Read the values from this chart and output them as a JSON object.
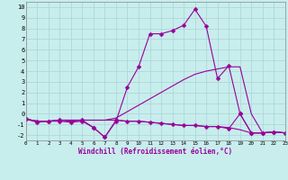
{
  "xlabel": "Windchill (Refroidissement éolien,°C)",
  "xlim": [
    0,
    23
  ],
  "ylim": [
    -2.5,
    10.5
  ],
  "yticks": [
    -2,
    -1,
    0,
    1,
    2,
    3,
    4,
    5,
    6,
    7,
    8,
    9,
    10
  ],
  "xticks": [
    0,
    1,
    2,
    3,
    4,
    5,
    6,
    7,
    8,
    9,
    10,
    11,
    12,
    13,
    14,
    15,
    16,
    17,
    18,
    19,
    20,
    21,
    22,
    23
  ],
  "bg_color": "#c8eded",
  "grid_color": "#b0d8d8",
  "line_color": "#990099",
  "lines": [
    {
      "x": [
        0,
        1,
        2,
        3,
        4,
        5,
        6,
        7,
        8,
        9,
        10,
        11,
        12,
        13,
        14,
        15,
        16,
        17,
        18,
        19,
        20,
        21,
        22,
        23
      ],
      "y": [
        -0.5,
        -0.8,
        -0.7,
        -0.7,
        -0.8,
        -0.7,
        -1.3,
        -2.2,
        -0.7,
        2.5,
        4.4,
        7.5,
        7.5,
        7.8,
        8.3,
        9.8,
        8.2,
        3.3,
        4.5,
        0.0,
        -1.8,
        -1.8,
        -1.7,
        -1.8
      ],
      "marker": "D",
      "markersize": 2.5
    },
    {
      "x": [
        0,
        1,
        2,
        3,
        4,
        5,
        6,
        7,
        8,
        9,
        10,
        11,
        12,
        13,
        14,
        15,
        16,
        17,
        18,
        19,
        20,
        21,
        22,
        23
      ],
      "y": [
        -0.5,
        -0.7,
        -0.7,
        -0.6,
        -0.6,
        -0.6,
        -0.6,
        -0.6,
        -0.4,
        0.2,
        0.8,
        1.4,
        2.0,
        2.6,
        3.2,
        3.7,
        4.0,
        4.2,
        4.4,
        4.4,
        0.0,
        -1.8,
        -1.7,
        -1.8
      ],
      "marker": null,
      "markersize": 0
    },
    {
      "x": [
        0,
        1,
        2,
        3,
        4,
        5,
        6,
        7,
        8,
        9,
        10,
        11,
        12,
        13,
        14,
        15,
        16,
        17,
        18,
        19,
        20,
        21,
        22,
        23
      ],
      "y": [
        -0.5,
        -0.7,
        -0.7,
        -0.6,
        -0.6,
        -0.6,
        -0.6,
        -0.6,
        -0.6,
        -0.7,
        -0.7,
        -0.8,
        -0.9,
        -1.0,
        -1.1,
        -1.1,
        -1.2,
        -1.2,
        -1.3,
        -1.5,
        -1.8,
        -1.8,
        -1.7,
        -1.8
      ],
      "marker": null,
      "markersize": 0
    },
    {
      "x": [
        0,
        1,
        2,
        3,
        4,
        5,
        6,
        7,
        8,
        9,
        10,
        11,
        12,
        13,
        14,
        15,
        16,
        17,
        18,
        19,
        20,
        21,
        22,
        23
      ],
      "y": [
        -0.5,
        -0.7,
        -0.7,
        -0.6,
        -0.7,
        -0.6,
        -1.3,
        -2.2,
        -0.6,
        -0.7,
        -0.7,
        -0.8,
        -0.9,
        -1.0,
        -1.1,
        -1.1,
        -1.2,
        -1.2,
        -1.4,
        0.0,
        -1.8,
        -1.8,
        -1.7,
        -1.8
      ],
      "marker": "D",
      "markersize": 2.5
    }
  ]
}
